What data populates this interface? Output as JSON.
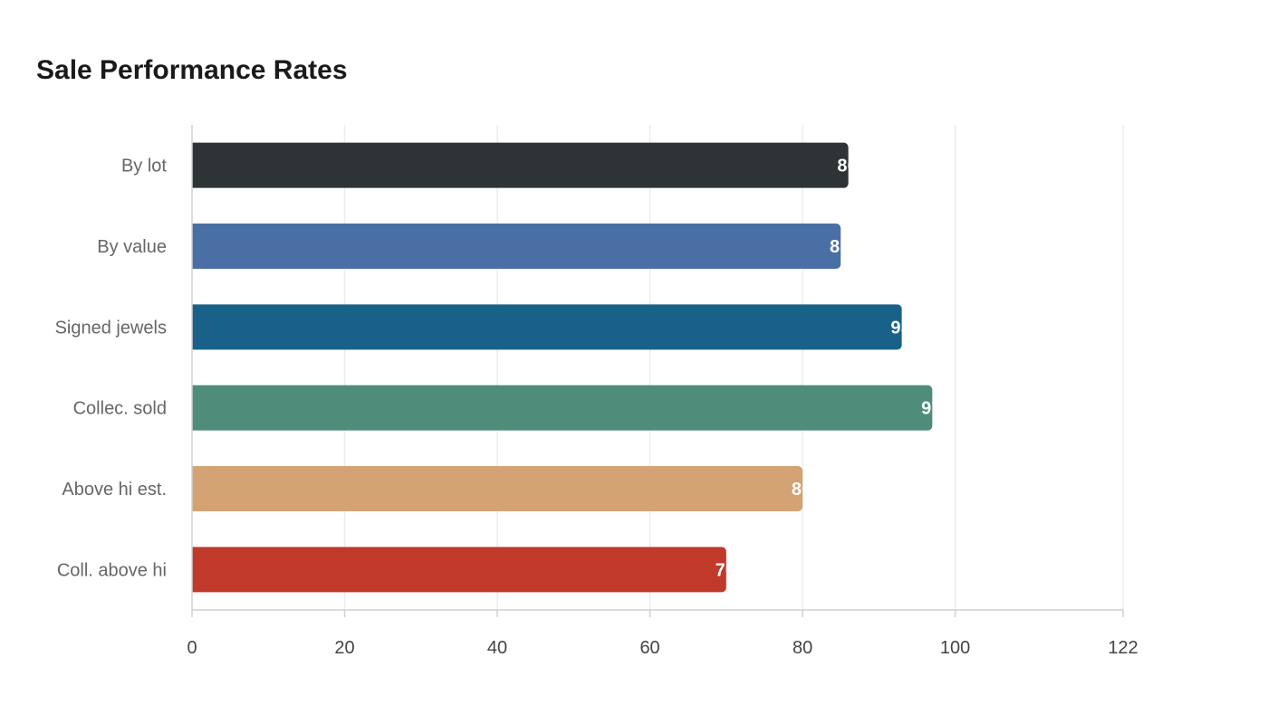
{
  "chart_data": {
    "type": "bar",
    "orientation": "horizontal",
    "title": "Sale Performance Rates",
    "xlabel": "",
    "ylabel": "",
    "categories": [
      "By lot",
      "By value",
      "Signed jewels",
      "Collec. sold",
      "Above hi est.",
      "Coll. above hi"
    ],
    "values": [
      86,
      85,
      93,
      97,
      80,
      70
    ],
    "colors": [
      "#2e3436",
      "#4a6fa5",
      "#196188",
      "#4f8c7a",
      "#d4a373",
      "#c0392b"
    ],
    "xlim": [
      0,
      122
    ],
    "x_ticks": [
      0,
      20,
      40,
      60,
      80,
      100,
      122
    ],
    "grid": true,
    "legend": "none"
  }
}
